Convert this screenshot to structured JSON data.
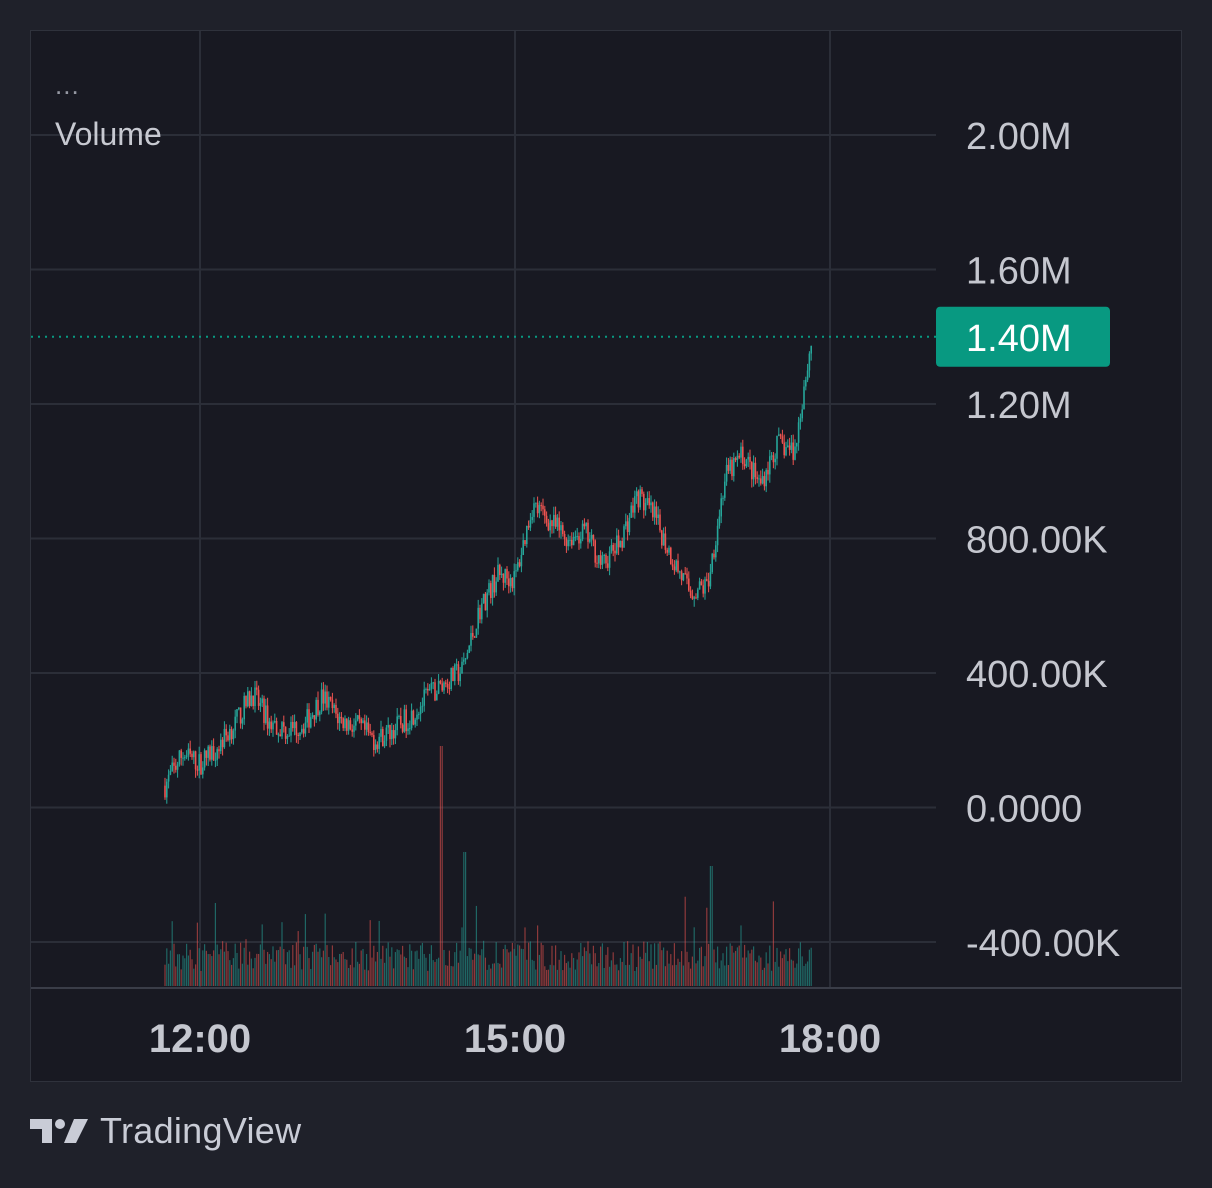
{
  "legend": {
    "ellipsis": "...",
    "title": "Volume"
  },
  "price_axis": {
    "ticks": [
      {
        "value": 2000000,
        "label": "2.00M"
      },
      {
        "value": 1600000,
        "label": "1.60M"
      },
      {
        "value": 1200000,
        "label": "1.20M"
      },
      {
        "value": 800000,
        "label": "800.00K"
      },
      {
        "value": 400000,
        "label": "400.00K"
      },
      {
        "value": 0,
        "label": "0.0000"
      },
      {
        "value": -400000,
        "label": "-400.00K"
      }
    ],
    "last_value": 1400000,
    "last_label": "1.40M"
  },
  "time_axis": {
    "ticks": [
      "12:00",
      "15:00",
      "18:00"
    ]
  },
  "colors": {
    "up": "#26a69a",
    "down": "#ef5350",
    "grid": "#2b2e38",
    "last_price_badge": "#089981",
    "axis_text": "#c5c7cf"
  },
  "footer": {
    "brand": "TradingView",
    "logo_icon": "tradingview-logo-icon"
  },
  "chart_data": {
    "type": "candlestick",
    "title": "",
    "series_name": "Volume",
    "x_range": [
      "11:40",
      "17:50"
    ],
    "y_range": [
      -540000,
      2010000
    ],
    "grid": true,
    "last_price": 1400000,
    "close_path": [
      [
        "11:40",
        65000
      ],
      [
        "11:50",
        160000
      ],
      [
        "12:00",
        130000
      ],
      [
        "12:10",
        180000
      ],
      [
        "12:20",
        250000
      ],
      [
        "12:30",
        340000
      ],
      [
        "12:40",
        250000
      ],
      [
        "12:50",
        230000
      ],
      [
        "13:00",
        250000
      ],
      [
        "13:10",
        330000
      ],
      [
        "13:20",
        260000
      ],
      [
        "13:30",
        240000
      ],
      [
        "13:40",
        200000
      ],
      [
        "13:50",
        230000
      ],
      [
        "14:00",
        270000
      ],
      [
        "14:10",
        330000
      ],
      [
        "14:20",
        370000
      ],
      [
        "14:30",
        410000
      ],
      [
        "14:40",
        590000
      ],
      [
        "14:50",
        690000
      ],
      [
        "15:00",
        680000
      ],
      [
        "15:10",
        900000
      ],
      [
        "15:20",
        850000
      ],
      [
        "15:30",
        800000
      ],
      [
        "15:40",
        820000
      ],
      [
        "15:50",
        720000
      ],
      [
        "16:00",
        790000
      ],
      [
        "16:10",
        930000
      ],
      [
        "16:20",
        860000
      ],
      [
        "16:30",
        740000
      ],
      [
        "16:40",
        640000
      ],
      [
        "16:50",
        660000
      ],
      [
        "17:00",
        980000
      ],
      [
        "17:10",
        1050000
      ],
      [
        "17:20",
        960000
      ],
      [
        "17:30",
        1080000
      ],
      [
        "17:40",
        1060000
      ],
      [
        "17:45",
        1250000
      ],
      [
        "17:50",
        1400000
      ]
    ],
    "volume_bars": "histogram of trade volume per bar, largest spike near 14:40"
  }
}
